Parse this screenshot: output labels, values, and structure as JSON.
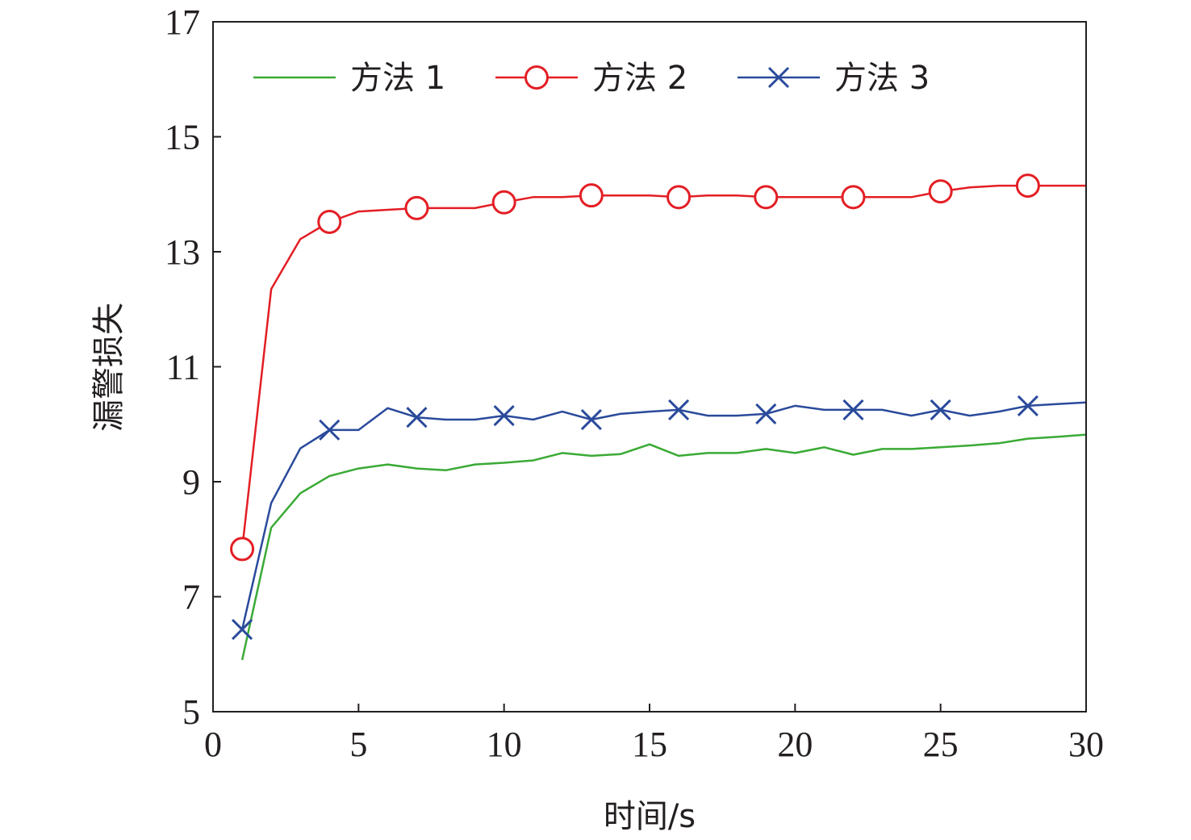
{
  "chart_data": {
    "type": "line",
    "xlabel": "时间/s",
    "ylabel": "漏警损失",
    "xlim": [
      0,
      30
    ],
    "ylim": [
      5,
      17
    ],
    "xticks": [
      0,
      5,
      10,
      15,
      20,
      25,
      30
    ],
    "yticks": [
      5,
      7,
      9,
      11,
      13,
      15,
      17
    ],
    "grid": false,
    "legend_position": "top",
    "x": [
      1,
      2,
      3,
      4,
      5,
      6,
      7,
      8,
      9,
      10,
      11,
      12,
      13,
      14,
      15,
      16,
      17,
      18,
      19,
      20,
      21,
      22,
      23,
      24,
      25,
      26,
      27,
      28,
      29,
      30
    ],
    "series": [
      {
        "name": "方法 1",
        "color": "#3aaa35",
        "marker": "none",
        "values": [
          5.9,
          8.2,
          8.8,
          9.1,
          9.23,
          9.3,
          9.23,
          9.2,
          9.3,
          9.33,
          9.37,
          9.5,
          9.45,
          9.48,
          9.65,
          9.45,
          9.5,
          9.5,
          9.57,
          9.5,
          9.6,
          9.47,
          9.57,
          9.57,
          9.6,
          9.63,
          9.67,
          9.75,
          9.78,
          9.82
        ]
      },
      {
        "name": "方法 2",
        "color": "#e31e24",
        "marker": "circle",
        "marker_every": 3,
        "values": [
          7.83,
          12.35,
          13.22,
          13.52,
          13.7,
          13.73,
          13.76,
          13.76,
          13.76,
          13.86,
          13.95,
          13.95,
          13.98,
          13.98,
          13.98,
          13.95,
          13.98,
          13.98,
          13.95,
          13.95,
          13.95,
          13.95,
          13.95,
          13.95,
          14.05,
          14.12,
          14.15,
          14.15,
          14.15,
          14.15
        ]
      },
      {
        "name": "方法 3",
        "color": "#2a4a9b",
        "marker": "x",
        "marker_every": 3,
        "values": [
          6.43,
          8.63,
          9.58,
          9.9,
          9.9,
          10.28,
          10.12,
          10.08,
          10.08,
          10.15,
          10.08,
          10.22,
          10.08,
          10.18,
          10.22,
          10.25,
          10.15,
          10.15,
          10.18,
          10.32,
          10.25,
          10.25,
          10.25,
          10.15,
          10.25,
          10.15,
          10.22,
          10.32,
          10.35,
          10.38
        ]
      }
    ]
  }
}
